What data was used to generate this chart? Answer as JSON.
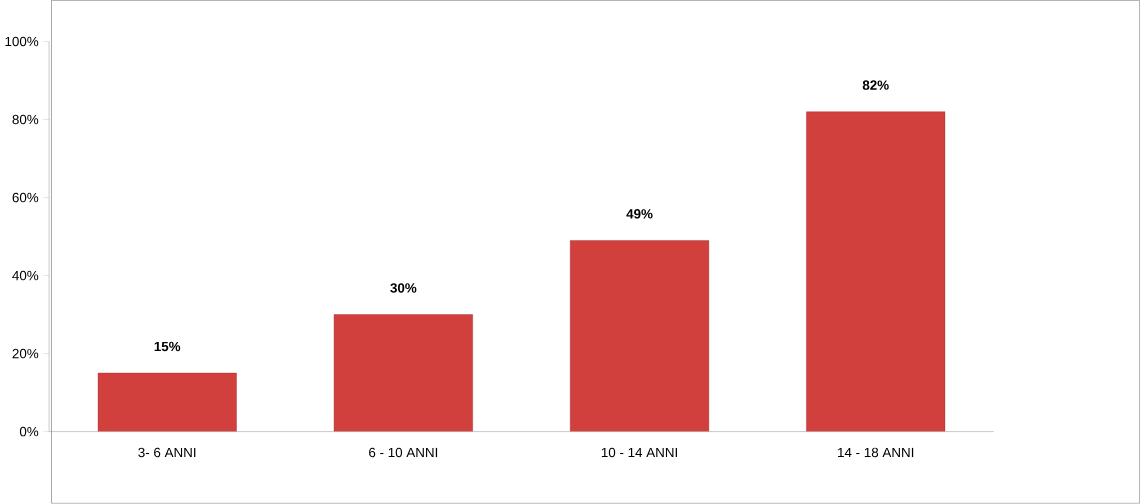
{
  "chart_data": {
    "type": "bar",
    "categories": [
      "3- 6 ANNI",
      "6 - 10 ANNI",
      "10 - 14 ANNI",
      "14 - 18 ANNI"
    ],
    "values": [
      15,
      30,
      49,
      82
    ],
    "value_labels": [
      "15%",
      "30%",
      "49%",
      "82%"
    ],
    "color": "#d2403d",
    "ylim": [
      0,
      100
    ],
    "yticks": [
      {
        "value": 0,
        "label": "0%"
      },
      {
        "value": 20,
        "label": "20%"
      },
      {
        "value": 40,
        "label": "40%"
      },
      {
        "value": 60,
        "label": "60%"
      },
      {
        "value": 80,
        "label": "80%"
      },
      {
        "value": 100,
        "label": "100%"
      }
    ],
    "grid": false
  }
}
